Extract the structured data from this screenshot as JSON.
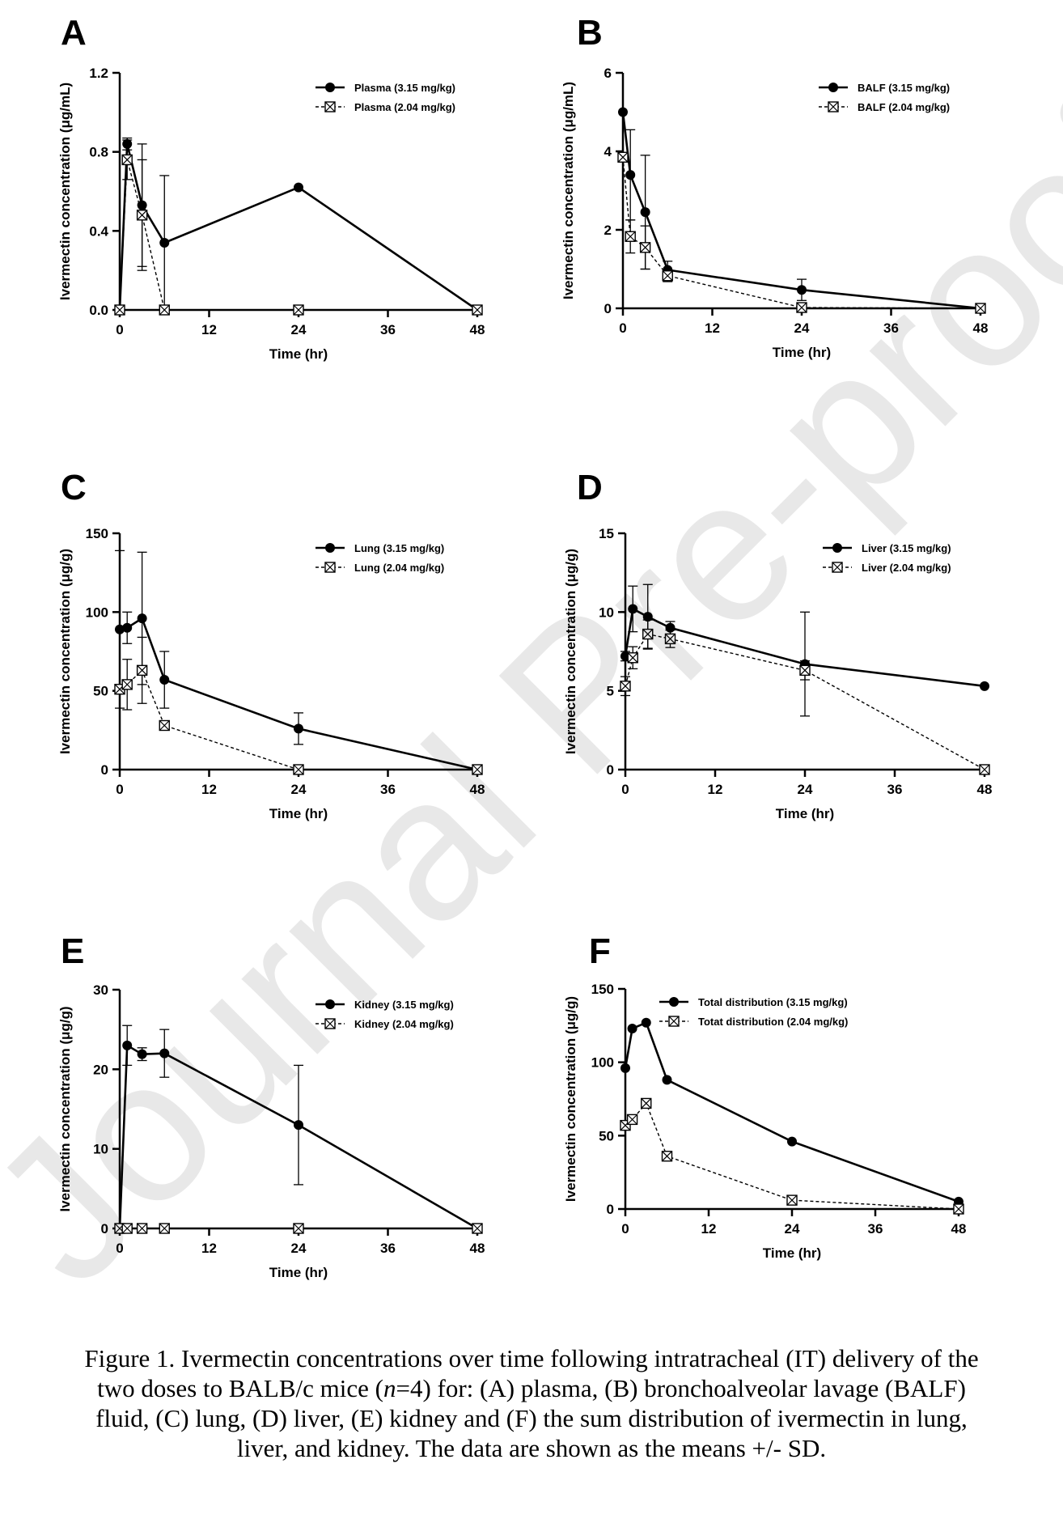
{
  "watermark": "Journal Pre-proofs",
  "chart_data": [
    {
      "type": "line",
      "panel": "A",
      "xlabel": "Time (hr)",
      "ylabel": "Ivermectin concentration (μg/mL)",
      "xlim": [
        0,
        48
      ],
      "ylim": [
        0,
        1.2
      ],
      "xticks": [
        0,
        12,
        24,
        36,
        48
      ],
      "yticks": [
        0,
        0.4,
        0.8,
        1.2
      ],
      "ytick_labels": [
        "0.0",
        "0.4",
        "0.8",
        "1.2"
      ],
      "legend_position": "top-right",
      "series": [
        {
          "name": "Plasma (3.15 mg/kg)",
          "marker": "circle",
          "line": "solid",
          "x": [
            0,
            1,
            3,
            6,
            24,
            48
          ],
          "y": [
            0,
            0.84,
            0.53,
            0.34,
            0.62,
            0
          ],
          "err": [
            0,
            0.03,
            0.31,
            0.34,
            0,
            0
          ]
        },
        {
          "name": "Plasma (2.04 mg/kg)",
          "marker": "box-x",
          "line": "dashed",
          "x": [
            0,
            1,
            3,
            6,
            24,
            48
          ],
          "y": [
            0,
            0.76,
            0.48,
            0,
            0,
            0
          ],
          "err": [
            0,
            0.1,
            0.28,
            0,
            0,
            0
          ]
        }
      ]
    },
    {
      "type": "line",
      "panel": "B",
      "xlabel": "Time (hr)",
      "ylabel": "Ivermectin concentration (μg/mL)",
      "xlim": [
        0,
        48
      ],
      "ylim": [
        0,
        6
      ],
      "xticks": [
        0,
        12,
        24,
        36,
        48
      ],
      "yticks": [
        0,
        2,
        4,
        6
      ],
      "ytick_labels": [
        "0",
        "2",
        "4",
        "6"
      ],
      "legend_position": "top-right",
      "series": [
        {
          "name": "BALF (3.15 mg/kg)",
          "marker": "circle",
          "line": "solid",
          "x": [
            0,
            1,
            3,
            6,
            24,
            48
          ],
          "y": [
            5.0,
            3.4,
            2.45,
            0.98,
            0.47,
            0
          ],
          "err": [
            0,
            1.15,
            1.45,
            0.22,
            0.27,
            0
          ]
        },
        {
          "name": "BALF (2.04 mg/kg)",
          "marker": "box-x",
          "line": "dashed",
          "x": [
            0,
            1,
            3,
            6,
            24,
            48
          ],
          "y": [
            3.85,
            1.83,
            1.55,
            0.83,
            0.02,
            0
          ],
          "err": [
            0,
            0.42,
            0.55,
            0.15,
            0,
            0
          ]
        }
      ]
    },
    {
      "type": "line",
      "panel": "C",
      "xlabel": "Time (hr)",
      "ylabel": "Ivermectin concentration (μg/g)",
      "xlim": [
        0,
        48
      ],
      "ylim": [
        0,
        150
      ],
      "xticks": [
        0,
        12,
        24,
        36,
        48
      ],
      "yticks": [
        0,
        50,
        100,
        150
      ],
      "ytick_labels": [
        "0",
        "50",
        "100",
        "150"
      ],
      "legend_position": "top-right",
      "series": [
        {
          "name": "Lung (3.15 mg/kg)",
          "marker": "circle",
          "line": "solid",
          "x": [
            0,
            1,
            3,
            6,
            24,
            48
          ],
          "y": [
            89,
            90,
            96,
            57,
            26,
            0
          ],
          "err": [
            50,
            10,
            42,
            18,
            10,
            0
          ]
        },
        {
          "name": "Lung (2.04 mg/kg)",
          "marker": "box-x",
          "line": "dashed",
          "x": [
            0,
            1,
            3,
            6,
            24,
            48
          ],
          "y": [
            51,
            54,
            63,
            28,
            0,
            0
          ],
          "err": [
            0,
            16,
            21,
            0,
            0,
            0
          ]
        }
      ]
    },
    {
      "type": "line",
      "panel": "D",
      "xlabel": "Time (hr)",
      "ylabel": "Ivermectin concentration (μg/g)",
      "xlim": [
        0,
        48
      ],
      "ylim": [
        0,
        15
      ],
      "xticks": [
        0,
        12,
        24,
        36,
        48
      ],
      "yticks": [
        0,
        5,
        10,
        15
      ],
      "ytick_labels": [
        "0",
        "5",
        "10",
        "15"
      ],
      "legend_position": "top-right",
      "series": [
        {
          "name": "Liver (3.15 mg/kg)",
          "marker": "circle",
          "line": "solid",
          "x": [
            0,
            1,
            3,
            6,
            24,
            48
          ],
          "y": [
            7.2,
            10.2,
            9.7,
            9.0,
            6.7,
            5.3
          ],
          "err": [
            0.3,
            1.45,
            2.05,
            0.4,
            3.3,
            0
          ]
        },
        {
          "name": "Liver (2.04 mg/kg)",
          "marker": "box-x",
          "line": "dashed",
          "x": [
            0,
            1,
            3,
            6,
            24,
            48
          ],
          "y": [
            5.3,
            7.1,
            8.6,
            8.3,
            6.3,
            0
          ],
          "err": [
            0.6,
            0.7,
            0.9,
            0.55,
            0.6,
            0
          ]
        }
      ]
    },
    {
      "type": "line",
      "panel": "E",
      "xlabel": "Time (hr)",
      "ylabel": "Ivermectin concentration (μg/g)",
      "xlim": [
        0,
        48
      ],
      "ylim": [
        0,
        30
      ],
      "xticks": [
        0,
        12,
        24,
        36,
        48
      ],
      "yticks": [
        0,
        10,
        20,
        30
      ],
      "ytick_labels": [
        "0",
        "10",
        "20",
        "30"
      ],
      "legend_position": "top-right",
      "series": [
        {
          "name": "Kidney (3.15 mg/kg)",
          "marker": "circle",
          "line": "solid",
          "x": [
            0,
            1,
            3,
            6,
            24,
            48
          ],
          "y": [
            0,
            23,
            21.9,
            22,
            13,
            0
          ],
          "err": [
            0,
            2.5,
            0.8,
            3.0,
            7.5,
            0
          ]
        },
        {
          "name": "Kidney (2.04 mg/kg)",
          "marker": "box-x",
          "line": "dashed",
          "x": [
            0,
            1,
            3,
            6,
            24,
            48
          ],
          "y": [
            0,
            0,
            0,
            0,
            0,
            0
          ],
          "err": [
            0,
            0,
            0,
            0,
            0,
            0
          ]
        }
      ]
    },
    {
      "type": "line",
      "panel": "F",
      "xlabel": "Time (hr)",
      "ylabel": "Ivermectin concentration (μg/g)",
      "xlim": [
        0,
        48
      ],
      "ylim": [
        0,
        150
      ],
      "xticks": [
        0,
        12,
        24,
        36,
        48
      ],
      "yticks": [
        0,
        50,
        100,
        150
      ],
      "ytick_labels": [
        "0",
        "50",
        "100",
        "150"
      ],
      "legend_position": "top-right",
      "series": [
        {
          "name": "Total distribution (3.15 mg/kg)",
          "marker": "circle",
          "line": "solid",
          "x": [
            0,
            1,
            3,
            6,
            24,
            48
          ],
          "y": [
            96,
            123,
            127,
            88,
            46,
            5
          ],
          "err": [
            0,
            0,
            0,
            0,
            0,
            0
          ]
        },
        {
          "name": "Totat distribution (2.04 mg/kg)",
          "marker": "box-x",
          "line": "dashed",
          "x": [
            0,
            1,
            3,
            6,
            24,
            48
          ],
          "y": [
            57,
            61,
            72,
            36,
            6,
            0
          ],
          "err": [
            0,
            0,
            0,
            0,
            0,
            0
          ]
        }
      ]
    }
  ],
  "caption": {
    "line1": "Figure 1. Ivermectin concentrations over time following intratracheal (IT) delivery of the",
    "line2_pre": "two doses to BALB/c mice (",
    "line2_italic": "n",
    "line2_post": "=4) for: (A) plasma, (B) bronchoalveolar lavage (BALF)",
    "line3": "fluid, (C) lung, (D) liver, (E) kidney and (F) the sum distribution of ivermectin in lung,",
    "line4": "liver, and kidney. The data are shown as the means +/- SD."
  }
}
